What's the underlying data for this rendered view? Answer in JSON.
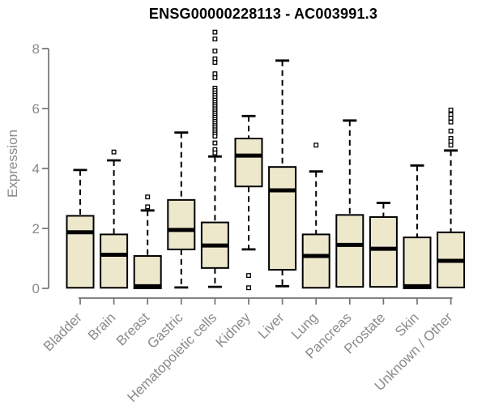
{
  "chart_data": {
    "type": "boxplot",
    "title": "ENSG00000228113 - AC003991.3",
    "ylabel": "Expression",
    "xlabel": "",
    "yticks": [
      0,
      2,
      4,
      6,
      8
    ],
    "ylim": [
      0,
      8.6
    ],
    "grid": false,
    "legend": "none",
    "colors": {
      "box_fill": "#EDE8CC",
      "box_stroke": "#000000",
      "median": "#000000",
      "whisker": "#000000",
      "axis": "#737373",
      "text": "#8a8a8a",
      "title": "#000000",
      "background": "#FFFFFF"
    },
    "categories": [
      "Bladder",
      "Brain",
      "Breast",
      "Gastric",
      "Hematopoietic cells",
      "Kidney",
      "Liver",
      "Lung",
      "Pancreas",
      "Prostate",
      "Skin",
      "Unknown / Other"
    ],
    "series": [
      {
        "name": "Bladder",
        "low": 0.02,
        "q1": 0.02,
        "median": 1.87,
        "q3": 2.42,
        "high": 3.95,
        "outliers": []
      },
      {
        "name": "Brain",
        "low": 0.02,
        "q1": 0.02,
        "median": 1.12,
        "q3": 1.8,
        "high": 4.27,
        "outliers": [
          4.55
        ]
      },
      {
        "name": "Breast",
        "low": 0.0,
        "q1": 0.0,
        "median": 0.07,
        "q3": 1.08,
        "high": 2.6,
        "outliers": [
          3.05,
          2.72
        ]
      },
      {
        "name": "Gastric",
        "low": 0.03,
        "q1": 1.3,
        "median": 1.95,
        "q3": 2.95,
        "high": 5.2,
        "outliers": []
      },
      {
        "name": "Hematopoietic cells",
        "low": 0.05,
        "q1": 0.68,
        "median": 1.43,
        "q3": 2.2,
        "high": 4.4,
        "outliers": [
          8.55,
          8.32,
          7.92,
          7.66,
          7.54,
          7.16,
          7.03,
          6.68,
          6.6,
          6.52,
          6.44,
          6.36,
          6.28,
          6.2,
          6.13,
          6.06,
          5.99,
          5.92,
          5.85,
          5.78,
          5.71,
          5.64,
          5.57,
          5.5,
          5.43,
          5.36,
          5.29,
          5.22,
          5.15,
          5.08,
          4.85,
          4.63,
          4.52
        ]
      },
      {
        "name": "Kidney",
        "low": 1.3,
        "q1": 3.4,
        "median": 4.43,
        "q3": 5.0,
        "high": 5.75,
        "outliers": [
          0.43,
          0.02
        ]
      },
      {
        "name": "Liver",
        "low": 0.07,
        "q1": 0.62,
        "median": 3.27,
        "q3": 4.05,
        "high": 7.6,
        "outliers": []
      },
      {
        "name": "Lung",
        "low": 0.02,
        "q1": 0.02,
        "median": 1.08,
        "q3": 1.8,
        "high": 3.9,
        "outliers": [
          4.78
        ]
      },
      {
        "name": "Pancreas",
        "low": 0.05,
        "q1": 0.05,
        "median": 1.45,
        "q3": 2.45,
        "high": 5.6,
        "outliers": []
      },
      {
        "name": "Prostate",
        "low": 0.05,
        "q1": 0.05,
        "median": 1.32,
        "q3": 2.38,
        "high": 2.85,
        "outliers": []
      },
      {
        "name": "Skin",
        "low": 0.0,
        "q1": 0.0,
        "median": 0.07,
        "q3": 1.7,
        "high": 4.1,
        "outliers": []
      },
      {
        "name": "Unknown / Other",
        "low": 0.03,
        "q1": 0.03,
        "median": 0.92,
        "q3": 1.87,
        "high": 4.6,
        "outliers": [
          5.95,
          5.8,
          5.68,
          5.55,
          5.25,
          5.0,
          4.9,
          4.78
        ]
      }
    ]
  }
}
